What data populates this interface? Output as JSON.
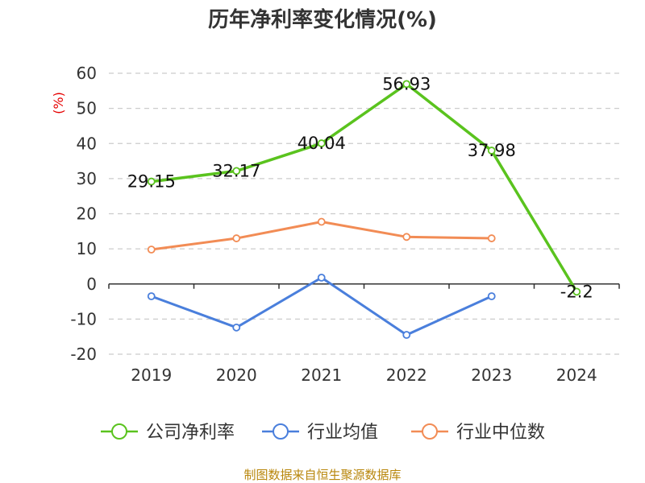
{
  "chart_data": {
    "type": "line",
    "title": "历年净利率变化情况(%)",
    "ylabel": "(%)",
    "xlabel": "",
    "categories": [
      "2019",
      "2020",
      "2021",
      "2022",
      "2023",
      "2024"
    ],
    "ylim": [
      -20,
      60
    ],
    "yticks": [
      60,
      50,
      40,
      30,
      20,
      10,
      0,
      -10,
      -20
    ],
    "grid": true,
    "legend_position": "bottom",
    "series": [
      {
        "name": "公司净利率",
        "color": "#5ac31e",
        "values": [
          29.15,
          32.17,
          40.04,
          56.93,
          37.98,
          -2.2
        ],
        "labels": [
          "29.15",
          "32.17",
          "40.04",
          "56.93",
          "37.98",
          "-2.2"
        ]
      },
      {
        "name": "行业均值",
        "color": "#4a7fdc",
        "values": [
          -3.5,
          -12.4,
          1.8,
          -14.5,
          -3.5,
          null
        ]
      },
      {
        "name": "行业中位数",
        "color": "#f28c55",
        "values": [
          9.8,
          13.0,
          17.7,
          13.4,
          13.0,
          null
        ]
      }
    ]
  },
  "source_text": "制图数据来自恒生聚源数据库"
}
